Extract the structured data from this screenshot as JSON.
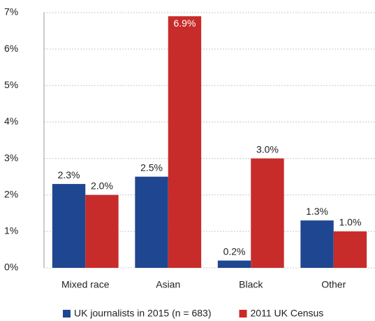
{
  "chart_data": {
    "type": "bar",
    "categories": [
      "Mixed race",
      "Asian",
      "Black",
      "Other"
    ],
    "series": [
      {
        "name": "UK journalists in 2015 (n = 683)",
        "color": "#1f4690",
        "values": [
          2.3,
          2.5,
          0.2,
          1.3
        ],
        "value_labels": [
          "2.3%",
          "2.5%",
          "0.2%",
          "1.3%"
        ]
      },
      {
        "name": "2011 UK Census",
        "color": "#c72c2a",
        "values": [
          2.0,
          6.9,
          3.0,
          1.0
        ],
        "value_labels": [
          "2.0%",
          "6.9%",
          "3.0%",
          "1.0%"
        ]
      }
    ],
    "ylim": [
      0,
      7
    ],
    "yticks": [
      {
        "value": 0,
        "label": "0%"
      },
      {
        "value": 1,
        "label": "1%"
      },
      {
        "value": 2,
        "label": "2%"
      },
      {
        "value": 3,
        "label": "3%"
      },
      {
        "value": 4,
        "label": "4%"
      },
      {
        "value": 5,
        "label": "5%"
      },
      {
        "value": 6,
        "label": "6%"
      },
      {
        "value": 7,
        "label": "7%"
      }
    ],
    "grid": true,
    "legend": "bottom"
  }
}
